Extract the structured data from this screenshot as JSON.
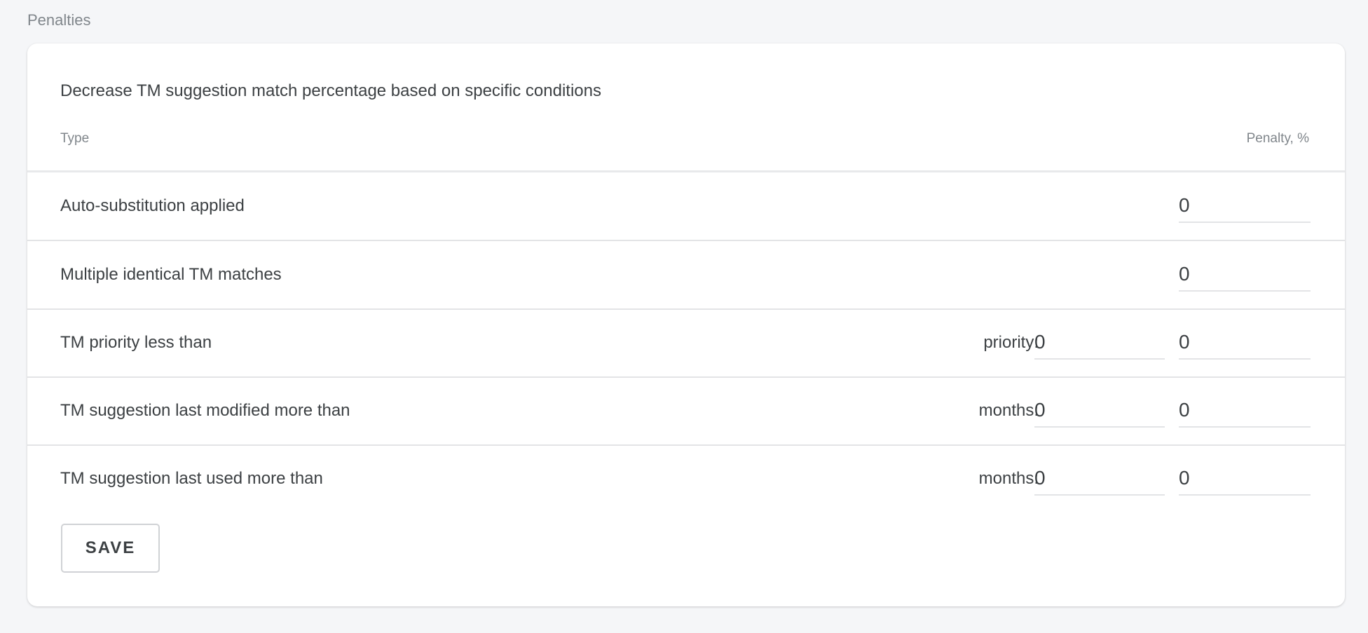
{
  "section_title": "Penalties",
  "card": {
    "description": "Decrease TM suggestion match percentage based on specific conditions",
    "columns": {
      "type": "Type",
      "penalty": "Penalty, %"
    },
    "rows": [
      {
        "label": "Auto-substitution applied",
        "penalty": "0"
      },
      {
        "label": "Multiple identical TM matches",
        "penalty": "0"
      },
      {
        "label": "TM priority less than",
        "aux_label": "priority:",
        "aux_value": "0",
        "penalty": "0"
      },
      {
        "label": "TM suggestion last modified more than",
        "aux_label": "months:",
        "aux_value": "0",
        "penalty": "0"
      },
      {
        "label": "TM suggestion last used more than",
        "aux_label": "months:",
        "aux_value": "0",
        "penalty": "0"
      }
    ],
    "save_label": "SAVE"
  }
}
